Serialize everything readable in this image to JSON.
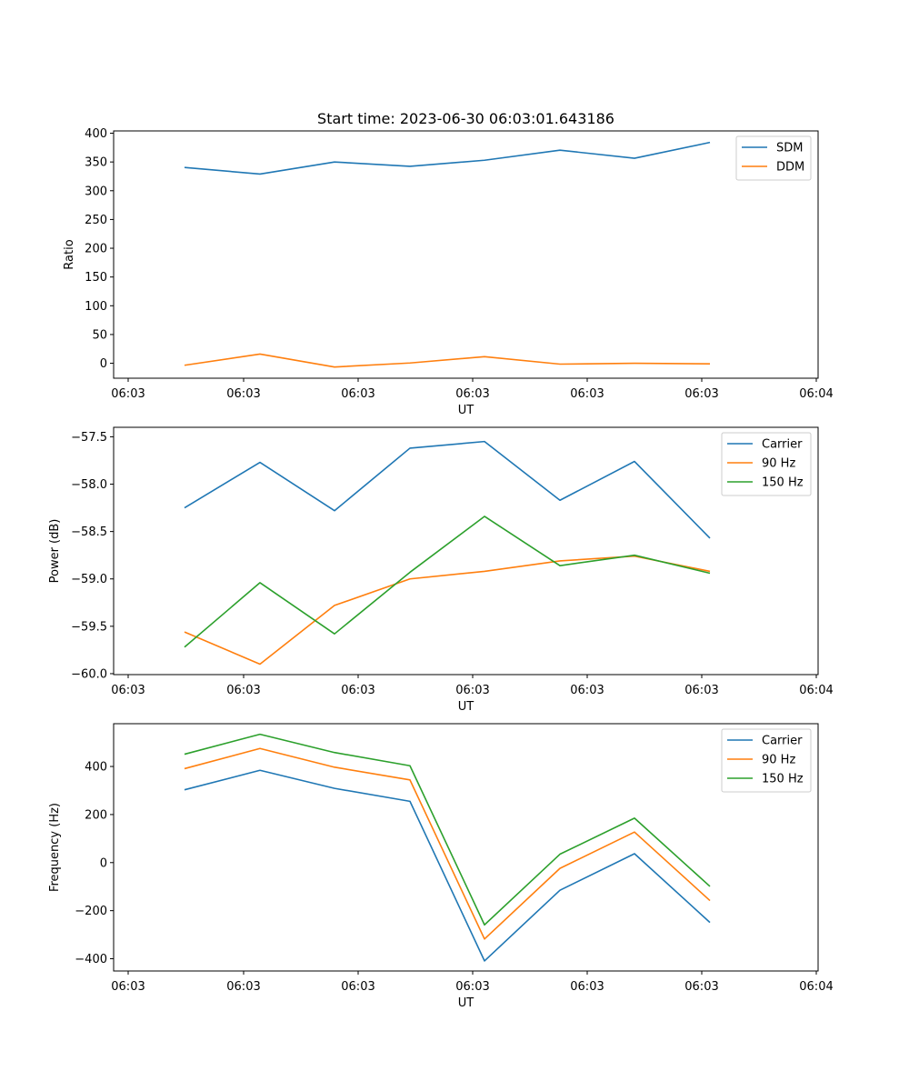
{
  "figure_title": "Start time: 2023-06-30 06:03:01.643186",
  "colors": {
    "blue": "#1f77b4",
    "orange": "#ff7f0e",
    "green": "#2ca02c"
  },
  "chart_data": [
    {
      "type": "line",
      "title": "Start time: 2023-06-30 06:03:01.643186",
      "xlabel": "UT",
      "ylabel": "Ratio",
      "x_tick_labels": [
        "06:03",
        "06:03",
        "06:03",
        "06:03",
        "06:03",
        "06:03",
        "06:04"
      ],
      "y_ticks": [
        0,
        50,
        100,
        150,
        200,
        250,
        300,
        350,
        400
      ],
      "ylim": [
        -26,
        404
      ],
      "legend_position": "upper right",
      "series": [
        {
          "name": "SDM",
          "color": "#1f77b4",
          "values": [
            340.5,
            329.0,
            350.0,
            342.5,
            353.0,
            370.5,
            356.5,
            384.0
          ]
        },
        {
          "name": "DDM",
          "color": "#ff7f0e",
          "values": [
            -3.5,
            16.0,
            -6.5,
            0.5,
            11.5,
            -1.5,
            0.0,
            -1.0
          ]
        }
      ]
    },
    {
      "type": "line",
      "title": "",
      "xlabel": "UT",
      "ylabel": "Power (dB)",
      "x_tick_labels": [
        "06:03",
        "06:03",
        "06:03",
        "06:03",
        "06:03",
        "06:03",
        "06:04"
      ],
      "y_ticks": [
        -60.0,
        -59.5,
        -59.0,
        -58.5,
        -58.0,
        -57.5
      ],
      "y_tick_labels": [
        "−60.0",
        "−59.5",
        "−59.0",
        "−58.5",
        "−58.0",
        "−57.5"
      ],
      "ylim": [
        -60.01,
        -57.4
      ],
      "legend_position": "upper right",
      "series": [
        {
          "name": "Carrier",
          "color": "#1f77b4",
          "values": [
            -58.25,
            -57.77,
            -58.28,
            -57.62,
            -57.55,
            -58.17,
            -57.76,
            -58.57
          ]
        },
        {
          "name": "90 Hz",
          "color": "#ff7f0e",
          "values": [
            -59.56,
            -59.9,
            -59.28,
            -59.0,
            -58.92,
            -58.81,
            -58.76,
            -58.92
          ]
        },
        {
          "name": "150 Hz",
          "color": "#2ca02c",
          "values": [
            -59.72,
            -59.04,
            -59.58,
            -58.93,
            -58.34,
            -58.86,
            -58.75,
            -58.94
          ]
        }
      ]
    },
    {
      "type": "line",
      "title": "",
      "xlabel": "UT",
      "ylabel": "Frequency (Hz)",
      "x_tick_labels": [
        "06:03",
        "06:03",
        "06:03",
        "06:03",
        "06:03",
        "06:03",
        "06:04"
      ],
      "y_ticks": [
        -400,
        -200,
        0,
        200,
        400
      ],
      "y_tick_labels": [
        "−400",
        "−200",
        "0",
        "200",
        "400"
      ],
      "ylim": [
        -451,
        578
      ],
      "legend_position": "upper right",
      "series": [
        {
          "name": "Carrier",
          "color": "#1f77b4",
          "values": [
            303,
            384,
            309,
            255,
            -409,
            -115,
            37,
            -249
          ]
        },
        {
          "name": "90 Hz",
          "color": "#ff7f0e",
          "values": [
            391,
            475,
            397,
            344,
            -318,
            -24,
            127,
            -158
          ]
        },
        {
          "name": "150 Hz",
          "color": "#2ca02c",
          "values": [
            451,
            534,
            458,
            403,
            -259,
            35,
            185,
            -99
          ]
        }
      ]
    }
  ]
}
